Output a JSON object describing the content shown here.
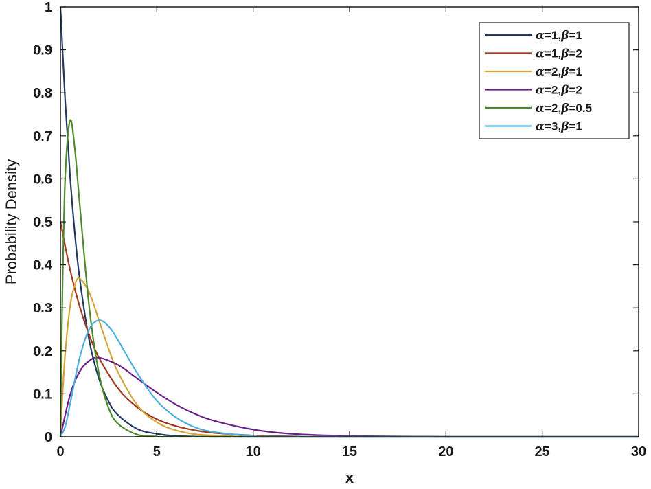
{
  "chart_data": {
    "type": "line",
    "title": "",
    "xlabel": "x",
    "ylabel": "Probability Density",
    "xlim": [
      0,
      30
    ],
    "ylim": [
      0,
      1
    ],
    "xticks": [
      "0",
      "5",
      "10",
      "15",
      "20",
      "25",
      "30"
    ],
    "yticks": [
      "0",
      "0.1",
      "0.2",
      "0.3",
      "0.4",
      "0.5",
      "0.6",
      "0.7",
      "0.8",
      "0.9",
      "1"
    ],
    "grid": false,
    "legend_position": "top-right",
    "series": [
      {
        "name": "α=1,β=1",
        "alpha_label": "α",
        "alpha": 1,
        "beta_label": "β",
        "beta": 1,
        "color": "#1f3a5f",
        "x": [
          0,
          0.25,
          0.5,
          0.75,
          1,
          1.5,
          2,
          2.5,
          3,
          4,
          5,
          6,
          8,
          10,
          30
        ],
        "y": [
          1,
          0.779,
          0.607,
          0.472,
          0.368,
          0.223,
          0.135,
          0.082,
          0.05,
          0.018,
          0.007,
          0.002,
          0,
          0,
          0
        ]
      },
      {
        "name": "α=1,β=2",
        "alpha_label": "α",
        "alpha": 1,
        "beta_label": "β",
        "beta": 2,
        "color": "#a0391f",
        "x": [
          0,
          0.5,
          1,
          1.5,
          2,
          3,
          4,
          5,
          6,
          7,
          8,
          10,
          12,
          15,
          30
        ],
        "y": [
          0.5,
          0.389,
          0.303,
          0.236,
          0.184,
          0.112,
          0.068,
          0.041,
          0.025,
          0.015,
          0.009,
          0.003,
          0.001,
          0,
          0
        ]
      },
      {
        "name": "α=2,β=1",
        "alpha_label": "α",
        "alpha": 2,
        "beta_label": "β",
        "beta": 1,
        "color": "#d4a43a",
        "x": [
          0,
          0.1,
          0.25,
          0.5,
          0.75,
          1,
          1.5,
          2,
          2.5,
          3,
          4,
          5,
          6,
          7,
          8,
          10,
          12,
          30
        ],
        "y": [
          0,
          0.09,
          0.195,
          0.303,
          0.354,
          0.368,
          0.335,
          0.271,
          0.205,
          0.149,
          0.073,
          0.034,
          0.015,
          0.006,
          0.003,
          0,
          0,
          0
        ]
      },
      {
        "name": "α=2,β=2",
        "alpha_label": "α",
        "alpha": 2,
        "beta_label": "β",
        "beta": 2,
        "color": "#6a1f8a",
        "x": [
          0,
          0.5,
          1,
          1.5,
          2,
          3,
          4,
          5,
          6,
          7,
          8,
          10,
          12,
          15,
          20,
          30
        ],
        "y": [
          0,
          0.097,
          0.152,
          0.177,
          0.184,
          0.167,
          0.135,
          0.103,
          0.075,
          0.053,
          0.037,
          0.017,
          0.007,
          0.002,
          0,
          0
        ]
      },
      {
        "name": "α=2,β=0.5",
        "alpha_label": "α",
        "alpha": 2,
        "beta_label": "β",
        "beta": 0.5,
        "color": "#4f8a2a",
        "x": [
          0,
          0.1,
          0.25,
          0.5,
          0.75,
          1,
          1.5,
          2,
          2.5,
          3,
          4,
          5,
          6,
          30
        ],
        "y": [
          0,
          0.327,
          0.606,
          0.736,
          0.669,
          0.541,
          0.299,
          0.147,
          0.067,
          0.03,
          0.005,
          0.001,
          0,
          0
        ]
      },
      {
        "name": "α=3,β=1",
        "alpha_label": "α",
        "alpha": 3,
        "beta_label": "β",
        "beta": 1,
        "color": "#4aaee0",
        "x": [
          0,
          0.25,
          0.5,
          1,
          1.5,
          2,
          2.5,
          3,
          4,
          5,
          6,
          7,
          8,
          10,
          12,
          30
        ],
        "y": [
          0,
          0.024,
          0.076,
          0.184,
          0.251,
          0.271,
          0.257,
          0.224,
          0.147,
          0.084,
          0.045,
          0.022,
          0.011,
          0.002,
          0,
          0
        ]
      }
    ]
  }
}
